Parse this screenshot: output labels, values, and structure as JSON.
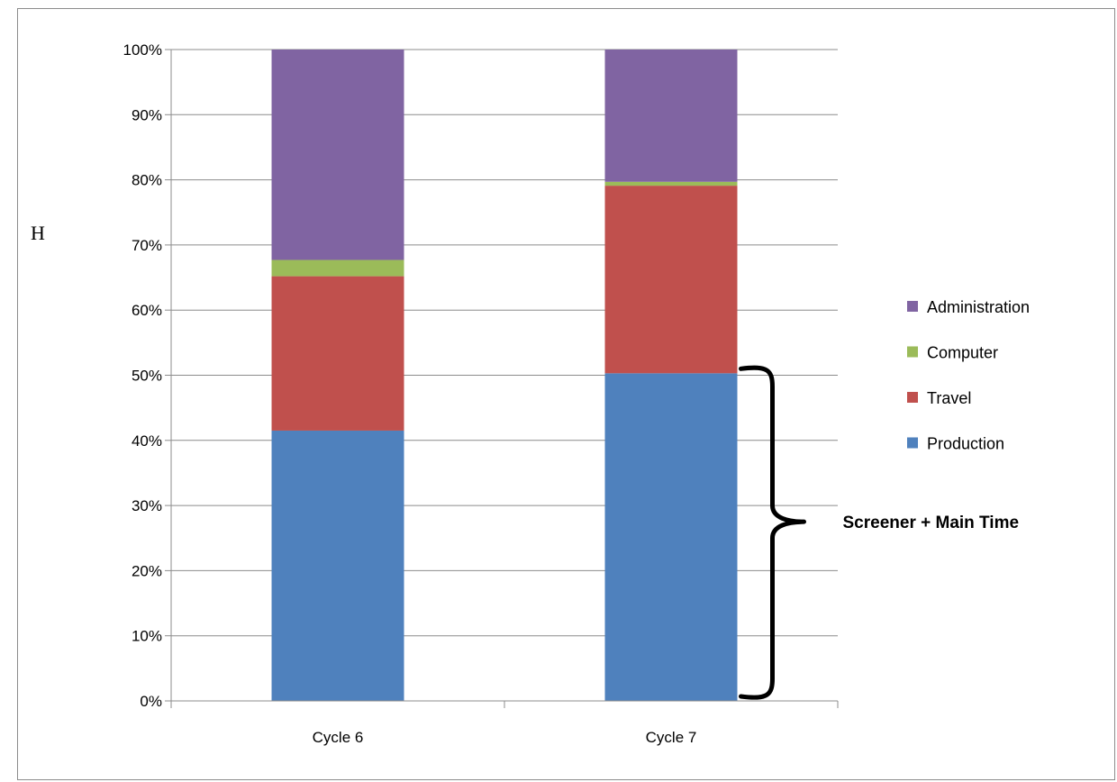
{
  "chart_data": {
    "type": "bar",
    "stacked": true,
    "percent_stacked": true,
    "categories": [
      "Cycle 6",
      "Cycle 7"
    ],
    "series": [
      {
        "name": "Production",
        "values": [
          41.5,
          50.3
        ],
        "color": "#4F81BD"
      },
      {
        "name": "Travel",
        "values": [
          23.7,
          28.8
        ],
        "color": "#C0504D"
      },
      {
        "name": "Computer",
        "values": [
          2.5,
          0.6
        ],
        "color": "#9BBB59"
      },
      {
        "name": "Administration",
        "values": [
          32.3,
          20.3
        ],
        "color": "#8064A2"
      }
    ],
    "ylim": [
      0,
      100
    ],
    "yticks": [
      "0%",
      "10%",
      "20%",
      "30%",
      "40%",
      "50%",
      "60%",
      "70%",
      "80%",
      "90%",
      "100%"
    ],
    "grid": true,
    "legend": {
      "position": "right",
      "order": [
        "Administration",
        "Computer",
        "Travel",
        "Production"
      ]
    },
    "annotation": {
      "text": "Screener + Main Time",
      "category": "Cycle 7",
      "range": [
        0,
        50.3
      ]
    },
    "stray_text": "H"
  }
}
